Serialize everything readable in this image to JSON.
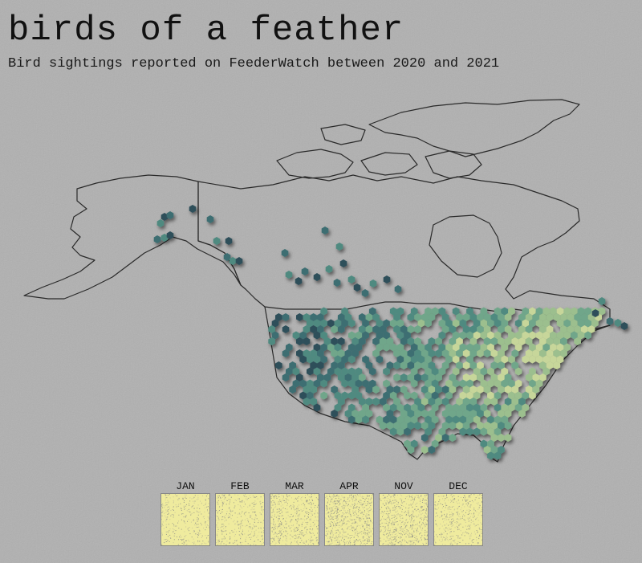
{
  "header": {
    "title": "birds of a feather",
    "subtitle": "Bird sightings reported on FeederWatch between 2020 and 2021"
  },
  "map": {
    "outline_color": "#2a2a2a",
    "hex_colors": [
      "#2e4f5a",
      "#3d6e72",
      "#4f8a80",
      "#6fa68a",
      "#9cbf8e",
      "#c7d69a"
    ],
    "background": "#b0b0b0"
  },
  "months": [
    {
      "label": "JAN",
      "density": 0.9
    },
    {
      "label": "FEB",
      "density": 0.85
    },
    {
      "label": "MAR",
      "density": 0.7
    },
    {
      "label": "APR",
      "density": 0.45
    },
    {
      "label": "NOV",
      "density": 0.55
    },
    {
      "label": "DEC",
      "density": 0.8
    }
  ]
}
